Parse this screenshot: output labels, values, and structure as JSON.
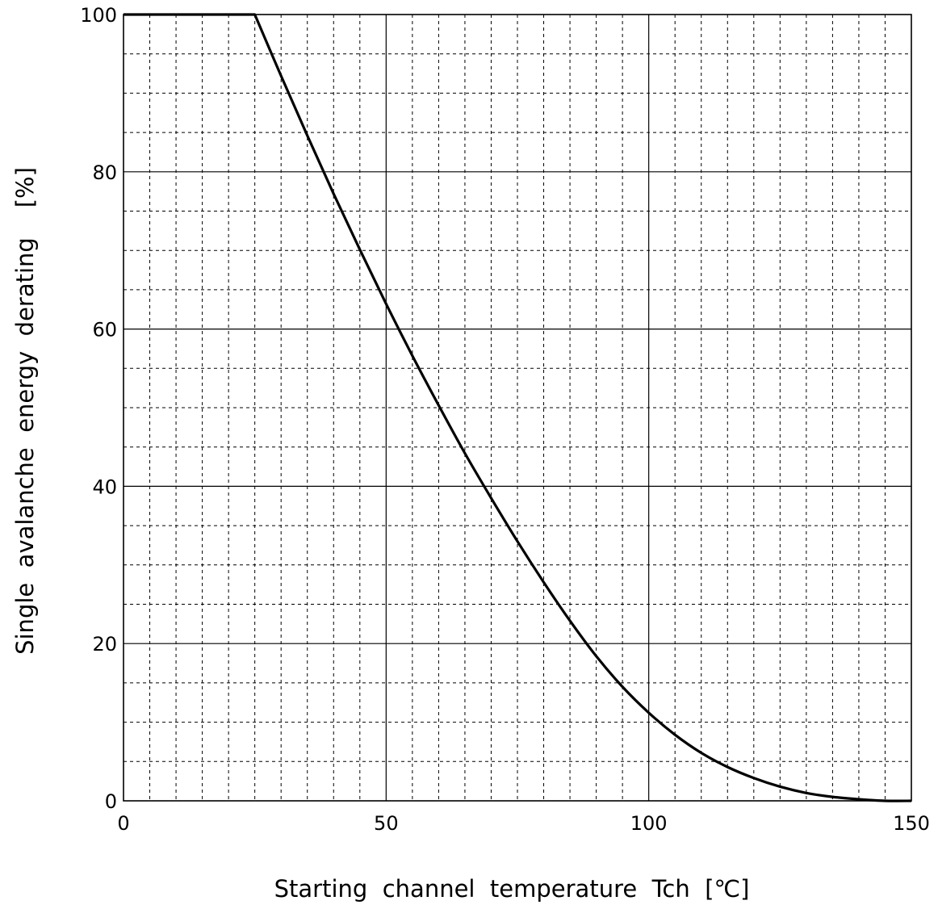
{
  "chart_data": {
    "type": "line",
    "title": "",
    "xlabel": "Starting  channel  temperature  Tch  [℃]",
    "ylabel": "Single  avalanche  energy  derating    [%]",
    "xlim": [
      0,
      150
    ],
    "ylim": [
      0,
      100
    ],
    "xticks": [
      0,
      50,
      100,
      150
    ],
    "xtick_labels": [
      "0",
      "50",
      "100",
      "150"
    ],
    "yticks": [
      0,
      20,
      40,
      60,
      80,
      100
    ],
    "ytick_labels": [
      "0",
      "20",
      "40",
      "60",
      "80",
      "100"
    ],
    "x_major_step": 50,
    "x_minor_step": 5,
    "y_major_step": 20,
    "y_minor_step": 5,
    "grid": true,
    "series": [
      {
        "x": [
          0,
          25,
          30,
          35,
          40,
          45,
          50,
          55,
          60,
          65,
          70,
          75,
          80,
          85,
          90,
          95,
          100,
          105,
          110,
          115,
          120,
          125,
          130,
          135,
          140,
          145,
          150
        ],
        "y": [
          100,
          100,
          92.2,
          84.6,
          77.2,
          70.1,
          63.2,
          56.6,
          50.3,
          44.2,
          38.5,
          33.0,
          27.8,
          22.9,
          18.4,
          14.5,
          11.2,
          8.4,
          6.1,
          4.3,
          2.9,
          1.8,
          1.0,
          0.5,
          0.2,
          0.0,
          0.0
        ]
      }
    ]
  },
  "style": {
    "line_color": "#000000",
    "grid_color": "#000000",
    "background": "#ffffff"
  }
}
